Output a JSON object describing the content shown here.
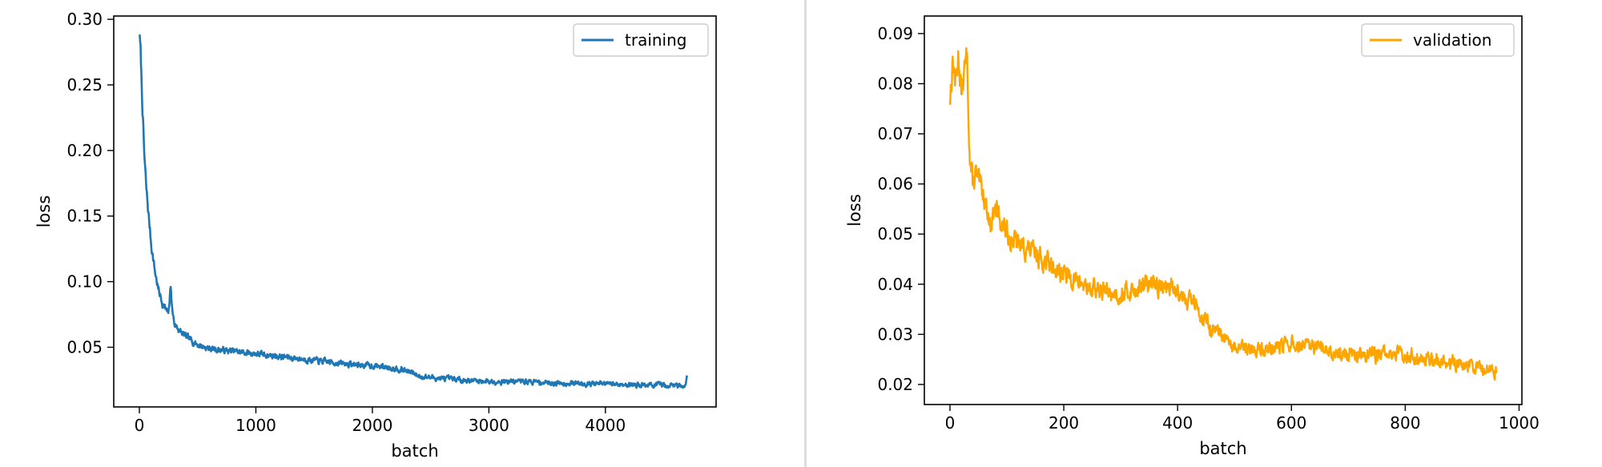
{
  "chart_data": [
    {
      "type": "line",
      "xlabel": "batch",
      "ylabel": "loss",
      "xlim": [
        -220,
        4950
      ],
      "ylim": [
        0.0045,
        0.3025
      ],
      "xticks": [
        0,
        1000,
        2000,
        3000,
        4000
      ],
      "xtick_labels": [
        "0",
        "1000",
        "2000",
        "3000",
        "4000"
      ],
      "yticks": [
        0.05,
        0.1,
        0.15,
        0.2,
        0.25,
        0.3
      ],
      "ytick_labels": [
        "0.05",
        "0.10",
        "0.15",
        "0.20",
        "0.25",
        "0.30"
      ],
      "grid": false,
      "legend_position": "upper right",
      "series": [
        {
          "name": "training",
          "color": "#1f77b4",
          "noise": 0.007,
          "x": [
            0,
            10,
            20,
            30,
            40,
            60,
            80,
            100,
            130,
            160,
            200,
            250,
            270,
            280,
            300,
            350,
            400,
            500,
            600,
            800,
            1000,
            1200,
            1400,
            1600,
            1800,
            2000,
            2200,
            2300,
            2400,
            2600,
            2800,
            3000,
            3300,
            3500,
            4000,
            4500,
            4690,
            4700
          ],
          "y": [
            0.29,
            0.275,
            0.25,
            0.225,
            0.2,
            0.17,
            0.15,
            0.13,
            0.11,
            0.095,
            0.083,
            0.075,
            0.098,
            0.08,
            0.068,
            0.062,
            0.058,
            0.052,
            0.049,
            0.047,
            0.045,
            0.043,
            0.041,
            0.039,
            0.037,
            0.036,
            0.034,
            0.032,
            0.028,
            0.026,
            0.025,
            0.024,
            0.024,
            0.023,
            0.022,
            0.021,
            0.021,
            0.028
          ]
        }
      ]
    },
    {
      "type": "line",
      "xlabel": "batch",
      "ylabel": "loss",
      "xlim": [
        -45,
        1005
      ],
      "ylim": [
        0.016,
        0.0935
      ],
      "xticks": [
        0,
        200,
        400,
        600,
        800,
        1000
      ],
      "xtick_labels": [
        "0",
        "200",
        "400",
        "600",
        "800",
        "1000"
      ],
      "yticks": [
        0.02,
        0.03,
        0.04,
        0.05,
        0.06,
        0.07,
        0.08,
        0.09
      ],
      "ytick_labels": [
        "0.02",
        "0.03",
        "0.04",
        "0.05",
        "0.06",
        "0.07",
        "0.08",
        "0.09"
      ],
      "grid": false,
      "legend_position": "upper right",
      "series": [
        {
          "name": "validation",
          "color": "#ffa500",
          "noise": 0.0035,
          "x": [
            0,
            5,
            10,
            15,
            20,
            25,
            30,
            35,
            40,
            45,
            50,
            60,
            70,
            80,
            100,
            120,
            150,
            200,
            250,
            300,
            350,
            400,
            430,
            460,
            480,
            500,
            550,
            600,
            650,
            700,
            750,
            800,
            850,
            900,
            950,
            960
          ],
          "y": [
            0.077,
            0.085,
            0.08,
            0.086,
            0.078,
            0.082,
            0.085,
            0.065,
            0.06,
            0.062,
            0.06,
            0.058,
            0.052,
            0.055,
            0.05,
            0.048,
            0.046,
            0.042,
            0.039,
            0.038,
            0.04,
            0.039,
            0.036,
            0.031,
            0.029,
            0.027,
            0.027,
            0.028,
            0.027,
            0.026,
            0.026,
            0.026,
            0.025,
            0.024,
            0.023,
            0.023
          ]
        }
      ]
    }
  ]
}
